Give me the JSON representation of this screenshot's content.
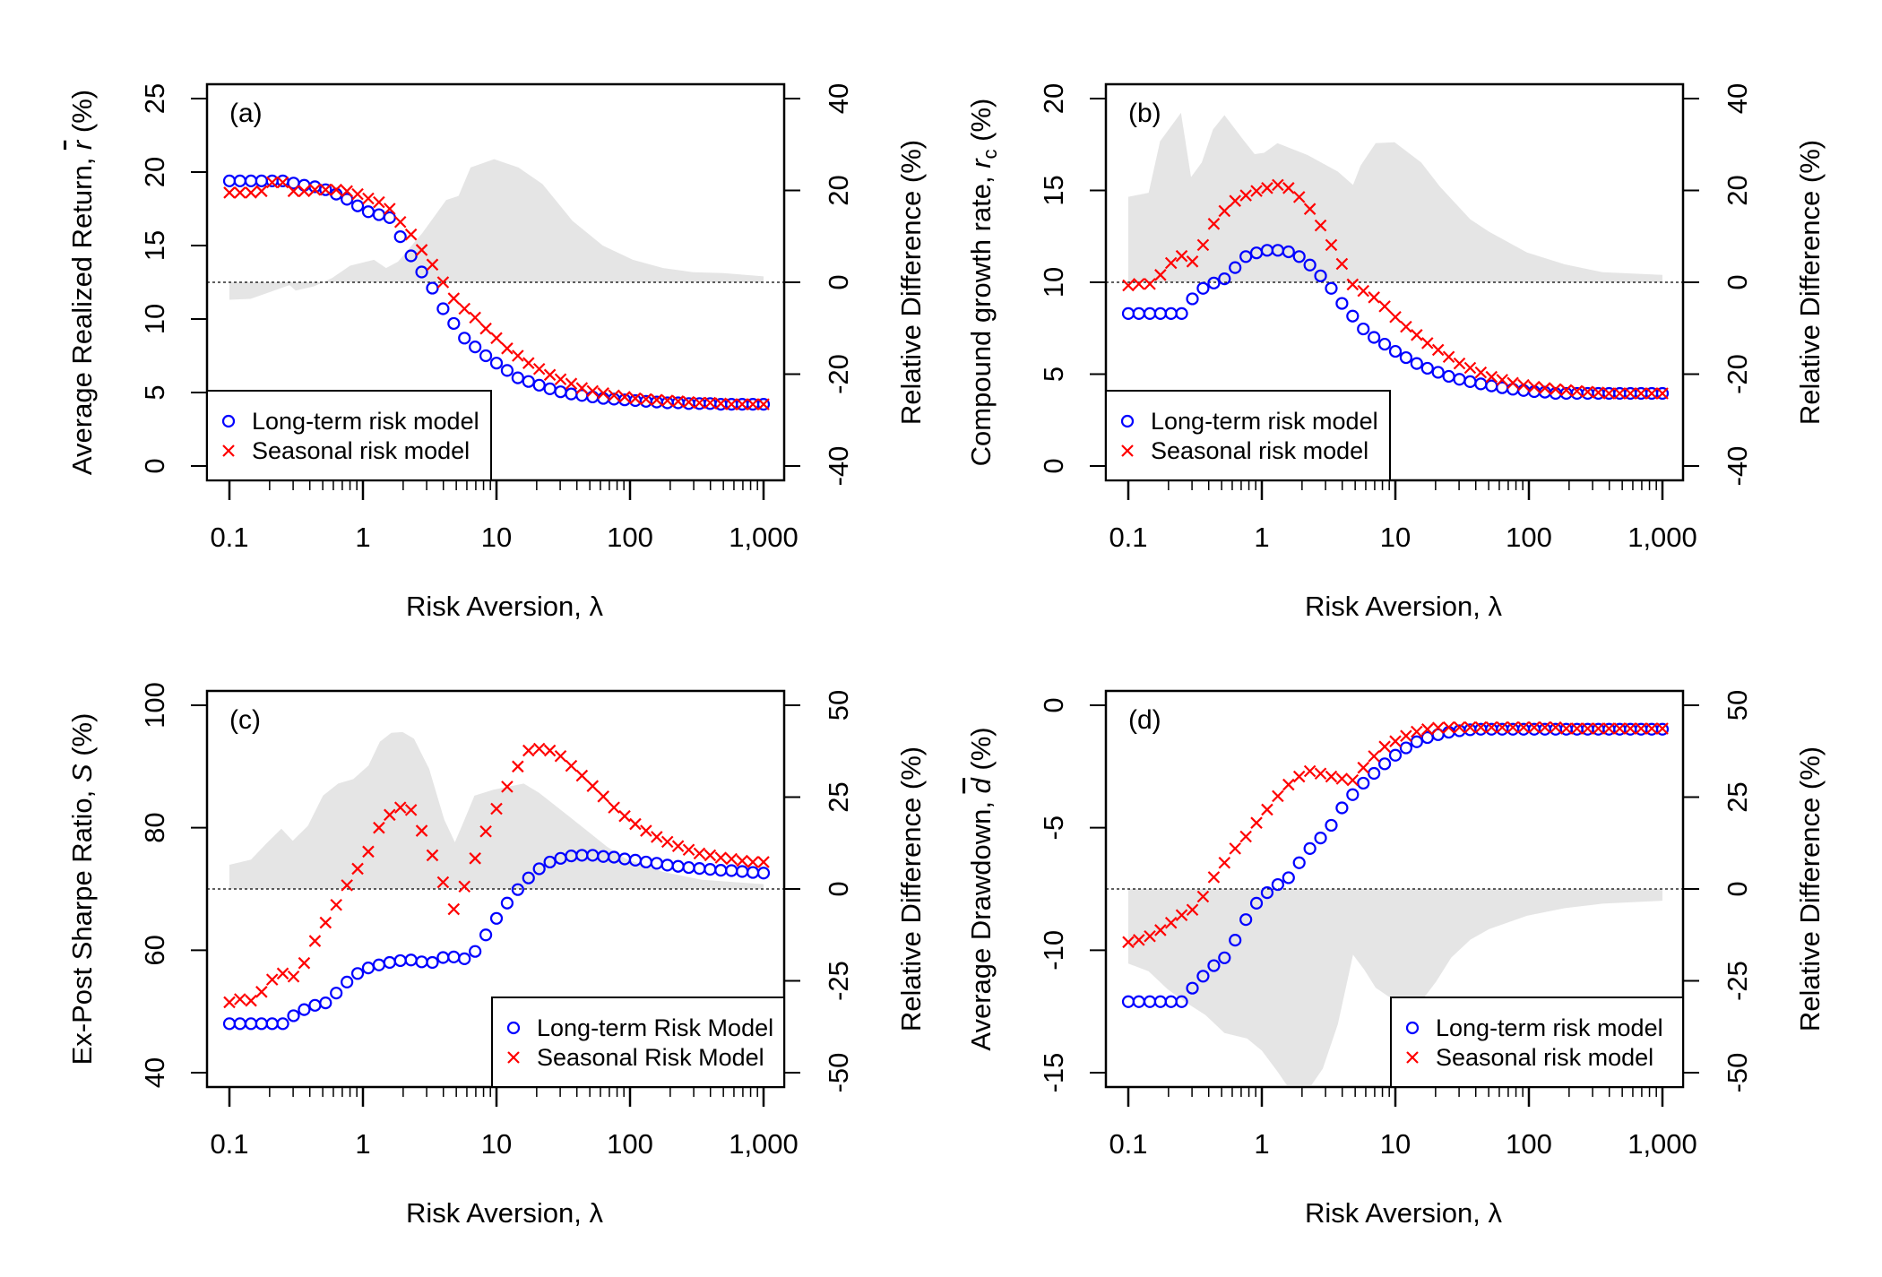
{
  "chart_data": [
    {
      "type": "scatter",
      "panel_label": "(a)",
      "xlabel": "Risk Aversion, λ",
      "xscale": "log",
      "xlim": [
        0.1,
        1000
      ],
      "xticks": [
        0.1,
        1,
        10,
        100,
        1000
      ],
      "xtick_labels": [
        "0.1",
        "1",
        "10",
        "100",
        "1,000"
      ],
      "ylabel": {
        "prefix": "Average Realized Return, ",
        "symbol": "r",
        "symbol_overline": true,
        "subscript": "",
        "suffix": " (%)"
      },
      "ylim": [
        0,
        25
      ],
      "yticks": [
        "0",
        "5",
        "10",
        "15",
        "20",
        "25"
      ],
      "y2label": "Relative Difference (%)",
      "y2lim": [
        -40,
        40
      ],
      "y2ticks": [
        "-40",
        "-20",
        "0",
        "20",
        "40"
      ],
      "legend_position": "bottom-left",
      "x": [
        0.1,
        0.12,
        0.145,
        0.174,
        0.209,
        0.251,
        0.302,
        0.363,
        0.437,
        0.525,
        0.631,
        0.759,
        0.912,
        1.096,
        1.318,
        1.585,
        1.905,
        2.291,
        2.754,
        3.311,
        3.981,
        4.786,
        5.754,
        6.918,
        8.318,
        10,
        12.02,
        14.45,
        17.38,
        20.89,
        25.12,
        30.2,
        36.31,
        43.65,
        52.48,
        63.1,
        75.86,
        91.2,
        109.6,
        131.8,
        158.5,
        190.5,
        229.1,
        275.4,
        331.1,
        398.1,
        478.6,
        575.4,
        691.8,
        831.8,
        1000
      ],
      "series": [
        {
          "name": "Long-term risk model",
          "marker": "circle",
          "color": "#0000FF",
          "values": [
            19.4,
            19.4,
            19.4,
            19.4,
            19.4,
            19.4,
            19.25,
            19.1,
            19.0,
            18.8,
            18.5,
            18.15,
            17.7,
            17.3,
            17.1,
            16.9,
            15.6,
            14.3,
            13.2,
            12.1,
            10.7,
            9.7,
            8.7,
            8.1,
            7.5,
            7.0,
            6.5,
            6.0,
            5.75,
            5.5,
            5.25,
            5.05,
            4.9,
            4.8,
            4.7,
            4.6,
            4.55,
            4.5,
            4.45,
            4.4,
            4.35,
            4.3,
            4.3,
            4.25,
            4.25,
            4.25,
            4.2,
            4.2,
            4.2,
            4.2,
            4.2
          ]
        },
        {
          "name": "Seasonal risk model",
          "marker": "cross",
          "color": "#FF0000",
          "values": [
            18.6,
            18.6,
            18.6,
            18.7,
            19.3,
            19.3,
            18.7,
            18.7,
            18.8,
            18.8,
            18.8,
            18.7,
            18.5,
            18.2,
            17.95,
            17.5,
            16.6,
            15.75,
            14.7,
            13.7,
            12.5,
            11.4,
            10.7,
            10.1,
            9.35,
            8.7,
            8.0,
            7.5,
            7.0,
            6.6,
            6.2,
            5.9,
            5.6,
            5.3,
            5.1,
            4.95,
            4.8,
            4.7,
            4.6,
            4.55,
            4.5,
            4.45,
            4.4,
            4.35,
            4.3,
            4.3,
            4.25,
            4.2,
            4.2,
            4.2,
            4.2
          ]
        }
      ],
      "relative_difference": {
        "axis": "right",
        "color": "#E5E5E5",
        "x": [
          0.1,
          0.144,
          0.207,
          0.282,
          0.313,
          0.428,
          0.585,
          0.8,
          1.21,
          1.49,
          1.83,
          2.78,
          4.2,
          5.2,
          6.4,
          9.6,
          14.6,
          22.1,
          37,
          62.5,
          105,
          177,
          296,
          500,
          1000
        ],
        "y": [
          -3.8,
          -3.6,
          -2.0,
          -0.6,
          -1.8,
          -0.9,
          0.9,
          3.6,
          4.9,
          3.1,
          4.5,
          10.7,
          17.9,
          18.8,
          25,
          26.8,
          25,
          21.4,
          13.4,
          8,
          4.9,
          3.1,
          2.2,
          2,
          1.3
        ]
      }
    },
    {
      "type": "scatter",
      "panel_label": "(b)",
      "xlabel": "Risk Aversion, λ",
      "xscale": "log",
      "xlim": [
        0.1,
        1000
      ],
      "xticks": [
        0.1,
        1,
        10,
        100,
        1000
      ],
      "xtick_labels": [
        "0.1",
        "1",
        "10",
        "100",
        "1,000"
      ],
      "ylabel": {
        "prefix": "Compound growth rate, ",
        "symbol": "r",
        "symbol_overline": false,
        "subscript": "c",
        "suffix": " (%)"
      },
      "ylim": [
        0,
        20
      ],
      "yticks": [
        "0",
        "5",
        "10",
        "15",
        "20"
      ],
      "y2label": "Relative Difference (%)",
      "y2lim": [
        -40,
        40
      ],
      "y2ticks": [
        "-40",
        "-20",
        "0",
        "20",
        "40"
      ],
      "legend_position": "bottom-left",
      "x": [
        0.1,
        0.12,
        0.145,
        0.174,
        0.209,
        0.251,
        0.302,
        0.363,
        0.437,
        0.525,
        0.631,
        0.759,
        0.912,
        1.096,
        1.318,
        1.585,
        1.905,
        2.291,
        2.754,
        3.311,
        3.981,
        4.786,
        5.754,
        6.918,
        8.318,
        10,
        12.02,
        14.45,
        17.38,
        20.89,
        25.12,
        30.2,
        36.31,
        43.65,
        52.48,
        63.1,
        75.86,
        91.2,
        109.6,
        131.8,
        158.5,
        190.5,
        229.1,
        275.4,
        331.1,
        398.1,
        478.6,
        575.4,
        691.8,
        831.8,
        1000
      ],
      "series": [
        {
          "name": "Long-term risk model",
          "marker": "circle",
          "color": "#0000FF",
          "values": [
            8.3,
            8.3,
            8.3,
            8.3,
            8.3,
            8.3,
            9.1,
            9.67,
            9.96,
            10.19,
            10.8,
            11.4,
            11.6,
            11.74,
            11.74,
            11.66,
            11.4,
            10.94,
            10.35,
            9.67,
            8.85,
            8.16,
            7.46,
            7.0,
            6.63,
            6.24,
            5.9,
            5.58,
            5.32,
            5.1,
            4.88,
            4.72,
            4.59,
            4.47,
            4.36,
            4.26,
            4.18,
            4.11,
            4.05,
            4.02,
            3.95,
            3.95,
            3.95,
            3.95,
            3.95,
            3.95,
            3.95,
            3.95,
            3.95,
            3.95,
            3.95
          ]
        },
        {
          "name": "Seasonal risk model",
          "marker": "cross",
          "color": "#FF0000",
          "values": [
            9.83,
            9.91,
            9.91,
            10.4,
            11.05,
            11.43,
            11.13,
            12.03,
            13.18,
            13.88,
            14.43,
            14.73,
            14.97,
            15.13,
            15.3,
            15.13,
            14.64,
            13.99,
            13.09,
            12.03,
            11.0,
            9.88,
            9.53,
            9.18,
            8.69,
            8.11,
            7.58,
            7.13,
            6.69,
            6.32,
            5.94,
            5.58,
            5.34,
            5.09,
            4.85,
            4.69,
            4.52,
            4.41,
            4.31,
            4.24,
            4.18,
            4.13,
            4.08,
            4.04,
            4.0,
            3.95,
            3.95,
            3.95,
            3.95,
            3.95,
            3.95
          ]
        }
      ],
      "relative_difference": {
        "axis": "right",
        "color": "#E5E5E5",
        "x": [
          0.1,
          0.142,
          0.173,
          0.248,
          0.295,
          0.355,
          0.431,
          0.525,
          0.727,
          0.883,
          1.04,
          1.31,
          2.2,
          3.71,
          4.82,
          5.49,
          7.12,
          9.87,
          15.6,
          21.6,
          36.4,
          50.4,
          96.8,
          186,
          356,
          1000
        ],
        "y": [
          18.6,
          19.5,
          30.7,
          36.9,
          22.9,
          26.1,
          33.3,
          36.4,
          31,
          27.9,
          28.2,
          30.3,
          27.7,
          24.1,
          21.2,
          25.4,
          30.3,
          30.5,
          26.1,
          20.8,
          13.7,
          11,
          6.5,
          3.9,
          2.2,
          1.6
        ]
      }
    },
    {
      "type": "scatter",
      "panel_label": "(c)",
      "xlabel": "Risk Aversion, λ",
      "xscale": "log",
      "xlim": [
        0.1,
        1000
      ],
      "xticks": [
        0.1,
        1,
        10,
        100,
        1000
      ],
      "xtick_labels": [
        "0.1",
        "1",
        "10",
        "100",
        "1,000"
      ],
      "ylabel": {
        "prefix": "Ex-Post Sharpe Ratio, ",
        "symbol": "S",
        "symbol_overline": false,
        "subscript": "",
        "suffix": " (%)"
      },
      "ylim": [
        40,
        100
      ],
      "yticks": [
        "40",
        "60",
        "80",
        "100"
      ],
      "y2label": "Relative Difference (%)",
      "y2lim": [
        -50,
        50
      ],
      "y2ticks": [
        "-50",
        "-25",
        "0",
        "25",
        "50"
      ],
      "legend_position": "bottom-right",
      "x": [
        0.1,
        0.12,
        0.145,
        0.174,
        0.209,
        0.251,
        0.302,
        0.363,
        0.437,
        0.525,
        0.631,
        0.759,
        0.912,
        1.096,
        1.318,
        1.585,
        1.905,
        2.291,
        2.754,
        3.311,
        3.981,
        4.786,
        5.754,
        6.918,
        8.318,
        10,
        12.02,
        14.45,
        17.38,
        20.89,
        25.12,
        30.2,
        36.31,
        43.65,
        52.48,
        63.1,
        75.86,
        91.2,
        109.6,
        131.8,
        158.5,
        190.5,
        229.1,
        275.4,
        331.1,
        398.1,
        478.6,
        575.4,
        691.8,
        831.8,
        1000
      ],
      "series": [
        {
          "name": "Long-term Risk Model",
          "marker": "circle",
          "color": "#0000FF",
          "values": [
            48.0,
            48.0,
            48.0,
            48.0,
            48.0,
            48.0,
            49.3,
            50.3,
            51.0,
            51.4,
            53.0,
            54.8,
            56.2,
            57.1,
            57.6,
            58.0,
            58.3,
            58.4,
            58.1,
            58.0,
            58.8,
            58.9,
            58.6,
            59.8,
            62.5,
            65.2,
            67.7,
            69.9,
            71.8,
            73.3,
            74.4,
            75.0,
            75.4,
            75.5,
            75.5,
            75.3,
            75.2,
            74.9,
            74.7,
            74.4,
            74.2,
            73.9,
            73.7,
            73.5,
            73.35,
            73.2,
            73.05,
            73.0,
            72.85,
            72.7,
            72.6
          ]
        },
        {
          "name": "Seasonal Risk Model",
          "marker": "cross",
          "color": "#FF0000",
          "values": [
            51.5,
            52.0,
            51.75,
            53.2,
            55.2,
            56.2,
            55.7,
            57.9,
            61.5,
            64.5,
            67.4,
            70.6,
            73.3,
            76.1,
            80.0,
            82.1,
            83.3,
            82.9,
            79.5,
            75.5,
            71.1,
            66.7,
            70.4,
            75.0,
            79.4,
            83.1,
            86.7,
            90.0,
            92.6,
            92.9,
            92.6,
            91.7,
            90.1,
            88.5,
            86.8,
            85.1,
            83.3,
            81.9,
            80.6,
            79.5,
            78.5,
            77.7,
            77.0,
            76.4,
            75.8,
            75.5,
            75.1,
            74.9,
            74.6,
            74.4,
            74.4
          ]
        }
      ],
      "relative_difference": {
        "axis": "right",
        "color": "#E5E5E5",
        "x": [
          0.1,
          0.145,
          0.188,
          0.245,
          0.298,
          0.387,
          0.502,
          0.652,
          0.847,
          1.1,
          1.34,
          1.63,
          1.98,
          2.41,
          3.13,
          4.06,
          4.88,
          5.63,
          6.84,
          9.48,
          16.0,
          20.8,
          35.1,
          48.6,
          67.3,
          93.3,
          179,
          345,
          1000
        ],
        "y": [
          6.6,
          8.0,
          12.3,
          16.4,
          13.1,
          17.2,
          25.4,
          28.7,
          29.9,
          33.6,
          40.1,
          42.5,
          42.7,
          40.9,
          32.7,
          18.9,
          12.7,
          18.0,
          25.4,
          27.0,
          28.7,
          26.2,
          19.7,
          15.6,
          11.5,
          8.2,
          4.6,
          2.5,
          1.3
        ]
      }
    },
    {
      "type": "scatter",
      "panel_label": "(d)",
      "xlabel": "Risk Aversion, λ",
      "xscale": "log",
      "xlim": [
        0.1,
        1000
      ],
      "xticks": [
        0.1,
        1,
        10,
        100,
        1000
      ],
      "xtick_labels": [
        "0.1",
        "1",
        "10",
        "100",
        "1,000"
      ],
      "ylabel": {
        "prefix": "Average Drawdown, ",
        "symbol": "d",
        "symbol_overline": true,
        "subscript": "",
        "suffix": " (%)"
      },
      "ylim": [
        -15,
        0
      ],
      "yticks": [
        "-15",
        "-10",
        "-5",
        "0"
      ],
      "y2label": "Relative Difference (%)",
      "y2lim": [
        -50,
        50
      ],
      "y2ticks": [
        "-50",
        "-25",
        "0",
        "25",
        "50"
      ],
      "legend_position": "bottom-right",
      "x": [
        0.1,
        0.12,
        0.145,
        0.174,
        0.209,
        0.251,
        0.302,
        0.363,
        0.437,
        0.525,
        0.631,
        0.759,
        0.912,
        1.096,
        1.318,
        1.585,
        1.905,
        2.291,
        2.754,
        3.311,
        3.981,
        4.786,
        5.754,
        6.918,
        8.318,
        10,
        12.02,
        14.45,
        17.38,
        20.89,
        25.12,
        30.2,
        36.31,
        43.65,
        52.48,
        63.1,
        75.86,
        91.2,
        109.6,
        131.8,
        158.5,
        190.5,
        229.1,
        275.4,
        331.1,
        398.1,
        478.6,
        575.4,
        691.8,
        831.8,
        1000
      ],
      "series": [
        {
          "name": "Long-term risk model",
          "marker": "circle",
          "color": "#0000FF",
          "values": [
            -12.1,
            -12.1,
            -12.1,
            -12.1,
            -12.1,
            -12.1,
            -11.55,
            -11.06,
            -10.63,
            -10.31,
            -9.59,
            -8.75,
            -8.08,
            -7.65,
            -7.32,
            -7.04,
            -6.43,
            -5.85,
            -5.42,
            -4.9,
            -4.19,
            -3.65,
            -3.18,
            -2.78,
            -2.39,
            -2.04,
            -1.74,
            -1.49,
            -1.32,
            -1.2,
            -1.1,
            -1.04,
            -1.0,
            -0.98,
            -0.98,
            -0.98,
            -0.98,
            -0.98,
            -0.98,
            -0.98,
            -0.98,
            -0.98,
            -0.98,
            -0.98,
            -0.98,
            -0.98,
            -0.98,
            -0.98,
            -0.98,
            -0.98,
            -0.98
          ]
        },
        {
          "name": "Seasonal risk model",
          "marker": "cross",
          "color": "#FF0000",
          "values": [
            -9.67,
            -9.58,
            -9.43,
            -9.18,
            -8.88,
            -8.57,
            -8.35,
            -7.81,
            -7.02,
            -6.43,
            -5.85,
            -5.36,
            -4.8,
            -4.26,
            -3.71,
            -3.24,
            -2.91,
            -2.69,
            -2.79,
            -2.91,
            -3.0,
            -3.06,
            -2.55,
            -2.08,
            -1.69,
            -1.47,
            -1.25,
            -1.08,
            -0.98,
            -0.92,
            -0.9,
            -0.9,
            -0.9,
            -0.9,
            -0.9,
            -0.9,
            -0.9,
            -0.9,
            -0.9,
            -0.9,
            -0.9,
            -0.95,
            -0.95,
            -0.95,
            -0.95,
            -0.95,
            -0.95,
            -0.95,
            -0.95,
            -0.95,
            -0.95
          ]
        }
      ],
      "relative_difference": {
        "axis": "right",
        "color": "#E5E5E5",
        "x": [
          0.1,
          0.142,
          0.197,
          0.273,
          0.378,
          0.525,
          0.776,
          1.0,
          1.31,
          1.54,
          2.35,
          2.86,
          3.71,
          4.82,
          5.86,
          7.12,
          9.25,
          12.8,
          16.6,
          20.2,
          26.2,
          36.4,
          50.4,
          96.8,
          186,
          356,
          1000
        ],
        "y": [
          -20.3,
          -22.4,
          -27.3,
          -31.0,
          -34.3,
          -39.2,
          -40.7,
          -44.0,
          -49.7,
          -53.4,
          -53.4,
          -48.9,
          -36.8,
          -17.9,
          -22.0,
          -26.9,
          -29.7,
          -29.3,
          -29.3,
          -25.2,
          -18.7,
          -13.8,
          -10.9,
          -7.3,
          -5.2,
          -4.0,
          -3.2
        ]
      }
    }
  ]
}
